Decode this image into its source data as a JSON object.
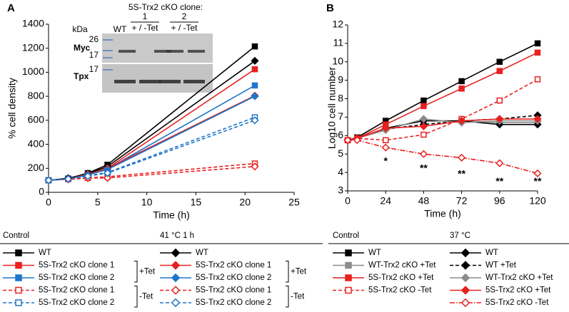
{
  "chart_data": [
    {
      "type": "line",
      "panel": "A",
      "xlabel": "Time (h)",
      "ylabel": "% cell density",
      "x": [
        0,
        2,
        4,
        6,
        21
      ],
      "xlim": [
        0,
        25
      ],
      "xticks": [
        0,
        5,
        10,
        15,
        20,
        25
      ],
      "ylim": [
        0,
        1400
      ],
      "yticks": [
        0,
        200,
        400,
        600,
        800,
        1000,
        1200,
        1400
      ],
      "series": [
        {
          "name": "WT",
          "group": "Control",
          "color": "#000000",
          "marker": "square",
          "filled": true,
          "line_style": "solid",
          "values": [
            100,
            115,
            160,
            230,
            1215
          ]
        },
        {
          "name": "5S-Trx2 cKO clone 1",
          "group": "Control",
          "treatment": "+Tet",
          "color": "#e8201f",
          "marker": "square",
          "filled": true,
          "line_style": "solid",
          "values": [
            100,
            112,
            150,
            200,
            1025
          ]
        },
        {
          "name": "5S-Trx2 cKO clone 2",
          "group": "Control",
          "treatment": "+Tet",
          "color": "#1f75c9",
          "marker": "square",
          "filled": true,
          "line_style": "solid",
          "values": [
            100,
            112,
            145,
            195,
            890
          ]
        },
        {
          "name": "5S-Trx2 cKO clone 1",
          "group": "Control",
          "treatment": "-Tet",
          "color": "#e8201f",
          "marker": "square",
          "filled": false,
          "line_style": "dashed",
          "values": [
            100,
            110,
            120,
            130,
            240
          ]
        },
        {
          "name": "5S-Trx2 cKO clone 2",
          "group": "Control",
          "treatment": "-Tet",
          "color": "#1f75c9",
          "marker": "square",
          "filled": false,
          "line_style": "dashed",
          "values": [
            100,
            112,
            140,
            165,
            625
          ]
        },
        {
          "name": "WT",
          "group": "41 °C 1 h",
          "color": "#000000",
          "marker": "diamond",
          "filled": true,
          "line_style": "solid",
          "values": [
            100,
            118,
            155,
            215,
            1095
          ]
        },
        {
          "name": "5S-Trx2 cKO clone 1",
          "group": "41 °C 1 h",
          "treatment": "+Tet",
          "color": "#e8201f",
          "marker": "diamond",
          "filled": true,
          "line_style": "solid",
          "values": [
            100,
            112,
            150,
            200,
            805
          ]
        },
        {
          "name": "5S-Trx2 cKO clone 2",
          "group": "41 °C 1 h",
          "treatment": "+Tet",
          "color": "#1f75c9",
          "marker": "diamond",
          "filled": true,
          "line_style": "solid",
          "values": [
            100,
            110,
            145,
            190,
            800
          ]
        },
        {
          "name": "5S-Trx2 cKO clone 1",
          "group": "41 °C 1 h",
          "treatment": "-Tet",
          "color": "#e8201f",
          "marker": "diamond",
          "filled": false,
          "line_style": "dashed",
          "values": [
            100,
            108,
            118,
            120,
            215
          ]
        },
        {
          "name": "5S-Trx2 cKO clone 2",
          "group": "41 °C 1 h",
          "treatment": "-Tet",
          "color": "#1f75c9",
          "marker": "diamond",
          "filled": false,
          "line_style": "dashed",
          "values": [
            100,
            112,
            135,
            160,
            600
          ]
        }
      ],
      "inset": {
        "title": "5S-Trx2 cKO clone:",
        "clones": [
          "1",
          "2"
        ],
        "treatment": "+ / -Tet",
        "unit": "kDa",
        "control_lane": "WT",
        "blots": [
          {
            "name": "Myc",
            "markers": [
              "26",
              "17"
            ]
          },
          {
            "name": "Tpx",
            "markers": [
              "17"
            ]
          }
        ]
      }
    },
    {
      "type": "line",
      "panel": "B",
      "xlabel": "Time (h)",
      "ylabel": "Log10 cell number",
      "x": [
        0,
        6,
        24,
        48,
        72,
        96,
        120
      ],
      "xlim": [
        0,
        120
      ],
      "xticks": [
        0,
        24,
        48,
        72,
        96,
        120
      ],
      "ylim": [
        3,
        12
      ],
      "yticks": [
        3,
        4,
        5,
        6,
        7,
        8,
        9,
        10,
        11,
        12
      ],
      "series": [
        {
          "name": "WT",
          "group": "Control",
          "color": "#000000",
          "marker": "square",
          "filled": true,
          "line_style": "solid",
          "values": [
            5.75,
            5.9,
            6.8,
            7.9,
            8.95,
            10.0,
            11.0
          ]
        },
        {
          "name": "WT-Trx2 cKO +Tet",
          "group": "Control",
          "color": "#8c8c8c",
          "marker": "square",
          "filled": true,
          "line_style": "solid",
          "values": [
            5.75,
            5.85,
            6.4,
            6.8,
            6.8,
            6.7,
            6.7
          ]
        },
        {
          "name": "5S-Trx2 cKO +Tet",
          "group": "Control",
          "color": "#e8201f",
          "marker": "square",
          "filled": true,
          "line_style": "solid",
          "values": [
            5.75,
            5.85,
            6.6,
            7.6,
            8.55,
            9.5,
            10.5
          ]
        },
        {
          "name": "5S-Trx2 cKO -Tet",
          "group": "Control",
          "color": "#e8201f",
          "marker": "square",
          "filled": false,
          "line_style": "dashed",
          "values": [
            5.75,
            5.85,
            5.75,
            6.05,
            6.9,
            7.9,
            9.05
          ]
        },
        {
          "name": "WT",
          "group": "37 °C",
          "color": "#000000",
          "marker": "diamond",
          "filled": true,
          "line_style": "solid",
          "values": [
            5.75,
            5.85,
            6.4,
            6.8,
            6.8,
            6.6,
            6.6
          ]
        },
        {
          "name": "WT +Tet",
          "group": "37 °C",
          "color": "#000000",
          "marker": "diamond",
          "filled": true,
          "line_style": "dashed",
          "values": [
            5.75,
            5.85,
            6.35,
            6.6,
            6.8,
            6.9,
            7.1
          ]
        },
        {
          "name": "WT-Trx2 cKO +Tet",
          "group": "37 °C",
          "color": "#8c8c8c",
          "marker": "diamond",
          "filled": true,
          "line_style": "solid",
          "values": [
            5.75,
            5.85,
            6.3,
            6.9,
            6.7,
            6.8,
            6.8
          ]
        },
        {
          "name": "5S-Trx2 cKO +Tet",
          "group": "37 °C",
          "color": "#e8201f",
          "marker": "diamond",
          "filled": true,
          "line_style": "solid",
          "values": [
            5.75,
            5.85,
            6.4,
            6.5,
            6.8,
            6.9,
            6.9
          ]
        },
        {
          "name": "5S-Trx2 cKO -Tet",
          "group": "37 °C",
          "color": "#e8201f",
          "marker": "diamond",
          "filled": false,
          "line_style": "dashdot",
          "values": [
            5.75,
            5.75,
            5.35,
            5.0,
            4.8,
            4.5,
            3.95
          ]
        }
      ],
      "annotations": [
        {
          "text": "*",
          "x": 24,
          "y": 4.6,
          "color": "#e8201f"
        },
        {
          "text": "**",
          "x": 48,
          "y": 4.2,
          "color": "#e8201f"
        },
        {
          "text": "**",
          "x": 72,
          "y": 3.9,
          "color": "#e8201f"
        },
        {
          "text": "**",
          "x": 96,
          "y": 3.5,
          "color": "#e8201f"
        },
        {
          "text": "**",
          "x": 120,
          "y": 3.5,
          "color": "#e8201f"
        }
      ]
    }
  ]
}
